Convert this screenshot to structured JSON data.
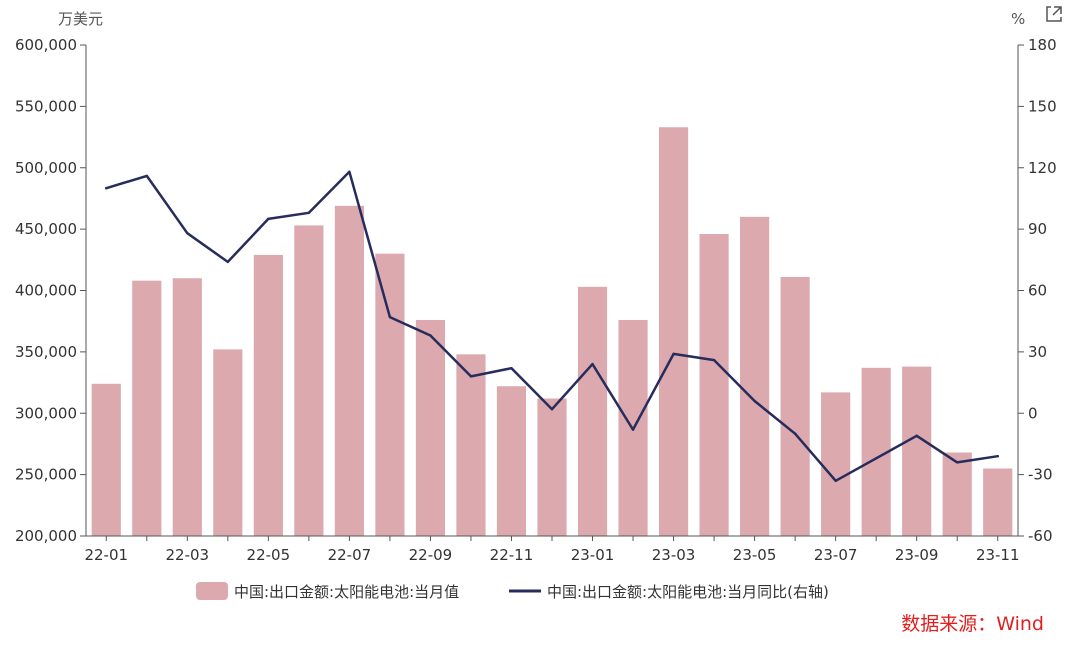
{
  "chart_data": {
    "type": "bar",
    "left_unit": "万美元",
    "right_unit": "%",
    "categories": [
      "22-01",
      "22-02",
      "22-03",
      "22-04",
      "22-05",
      "22-06",
      "22-07",
      "22-08",
      "22-09",
      "22-10",
      "22-11",
      "22-12",
      "23-01",
      "23-02",
      "23-03",
      "23-04",
      "23-05",
      "23-06",
      "23-07",
      "23-08",
      "23-09",
      "23-10",
      "23-11"
    ],
    "x_tick_labels": [
      "22-01",
      "",
      "22-03",
      "",
      "22-05",
      "",
      "22-07",
      "",
      "22-09",
      "",
      "22-11",
      "",
      "23-01",
      "",
      "23-03",
      "",
      "23-05",
      "",
      "23-07",
      "",
      "23-09",
      "",
      "23-11"
    ],
    "series": [
      {
        "name": "中国:出口金额:太阳能电池:当月值",
        "type": "bar",
        "axis": "left",
        "color": "#dca9ae",
        "values": [
          324000,
          408000,
          410000,
          352000,
          429000,
          453000,
          469000,
          430000,
          376000,
          348000,
          322000,
          312000,
          403000,
          376000,
          533000,
          446000,
          460000,
          411000,
          317000,
          337000,
          338000,
          268000,
          255000
        ]
      },
      {
        "name": "中国:出口金额:太阳能电池:当月同比(右轴)",
        "type": "line",
        "axis": "right",
        "color": "#262c5c",
        "values": [
          110,
          116,
          88,
          74,
          95,
          98,
          118,
          47,
          38,
          18,
          22,
          2,
          24,
          -8,
          29,
          26,
          6,
          -10,
          -33,
          -22,
          -11,
          -24,
          -21
        ]
      }
    ],
    "left_axis": {
      "min": 200000,
      "max": 600000,
      "ticks": [
        "200,000",
        "250,000",
        "300,000",
        "350,000",
        "400,000",
        "450,000",
        "500,000",
        "550,000",
        "600,000"
      ]
    },
    "right_axis": {
      "min": -60,
      "max": 180,
      "ticks": [
        "-60",
        "-30",
        "0",
        "30",
        "60",
        "90",
        "120",
        "150",
        "180"
      ]
    },
    "grid": false,
    "legend_position": "bottom",
    "source": "数据来源：Wind"
  }
}
